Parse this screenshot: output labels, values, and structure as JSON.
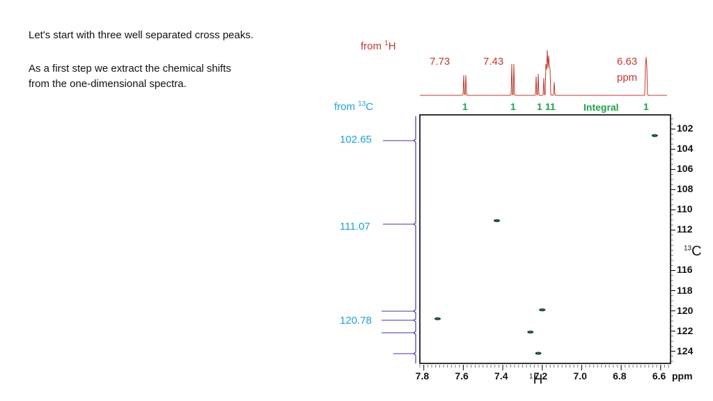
{
  "intro": {
    "line1": "Let's start with three well separated cross peaks.",
    "line2": "As a first step we extract the chemical shifts",
    "line3": "from the one-dimensional spectra."
  },
  "proton": {
    "from_label_prefix": "from ",
    "from_label_sup": "1",
    "from_label_suffix": "H",
    "shift_labels": [
      "7.73",
      "7.43",
      "6.63"
    ],
    "ppm_label": "ppm",
    "integral_values": [
      "1",
      "1",
      "1",
      "11",
      "1"
    ],
    "integral_label": "Integral"
  },
  "carbon": {
    "from_label_prefix": "from ",
    "from_label_sup": "13",
    "from_label_suffix": "C",
    "shift_labels": [
      "102.65",
      "111.07",
      "120.78"
    ]
  },
  "chart_data": {
    "type": "scatter",
    "title": "",
    "x_axis": {
      "label_sup": "1",
      "label": "H",
      "unit_label": "ppm",
      "ticks": [
        "7.8",
        "7.6",
        "7.4",
        "7.2",
        "7.0",
        "6.8",
        "6.6"
      ],
      "range": [
        7.82,
        6.55
      ]
    },
    "y_axis": {
      "label_sup": "13",
      "label": "C",
      "ticks": [
        "102",
        "104",
        "106",
        "108",
        "110",
        "112",
        "116",
        "118",
        "120",
        "122",
        "124"
      ],
      "range": [
        100.6,
        125.2
      ]
    },
    "cross_peaks": [
      {
        "h": 6.63,
        "c": 102.65
      },
      {
        "h": 7.43,
        "c": 111.07
      },
      {
        "h": 7.73,
        "c": 120.78
      },
      {
        "h": 7.2,
        "c": 119.9
      },
      {
        "h": 7.26,
        "c": 122.1
      },
      {
        "h": 7.22,
        "c": 124.2
      }
    ],
    "colors": {
      "peak": "#0d2b1a",
      "proton_trace": "#c0392b",
      "carbon_trace": "#3a3aa0",
      "frame": "#000000"
    }
  }
}
